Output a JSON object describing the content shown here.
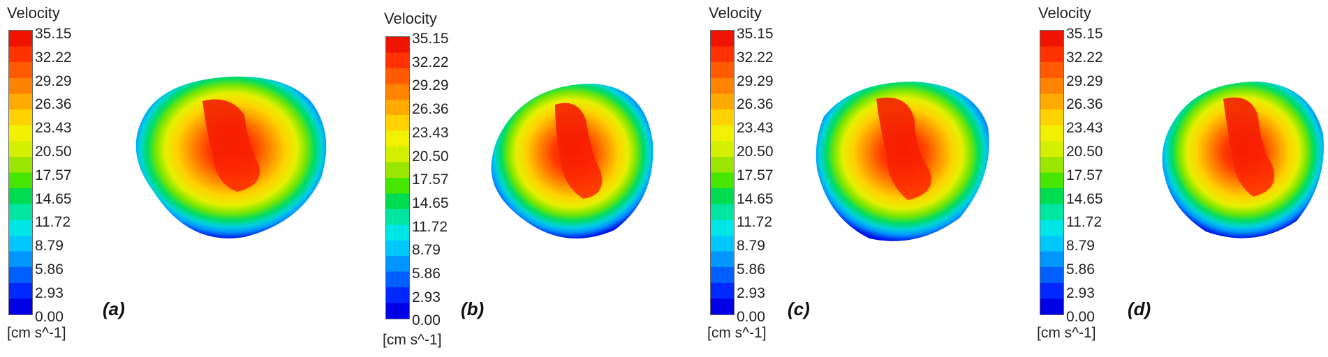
{
  "legend": {
    "title": "Velocity",
    "units": "[cm s^-1]",
    "ticks": [
      "35.15",
      "32.22",
      "29.29",
      "26.36",
      "23.43",
      "20.50",
      "17.57",
      "14.65",
      "11.72",
      "8.79",
      "5.86",
      "2.93",
      "0.00"
    ],
    "colors": [
      "#0000e6",
      "#0028ff",
      "#0060ff",
      "#0096ff",
      "#00c8ff",
      "#00e6e6",
      "#00e6a0",
      "#00dc50",
      "#46e600",
      "#9be600",
      "#d2f000",
      "#f0f000",
      "#ffd200",
      "#ffaa00",
      "#ff8200",
      "#ff5a00",
      "#ff3200",
      "#f01400"
    ]
  },
  "panels": [
    {
      "label": "(a)"
    },
    {
      "label": "(b)"
    },
    {
      "label": "(c)"
    },
    {
      "label": "(d)"
    }
  ]
}
